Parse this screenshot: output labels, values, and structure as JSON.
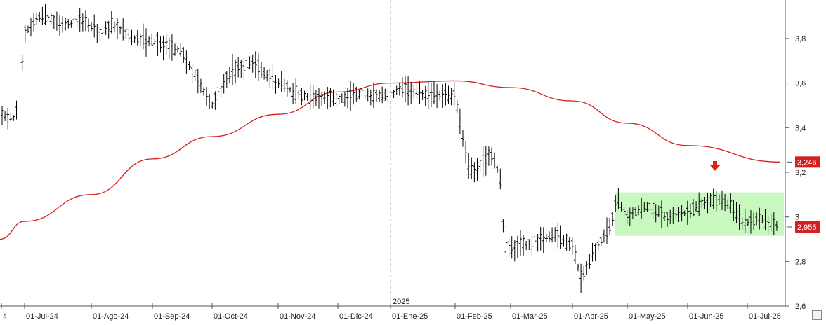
{
  "chart_data": {
    "type": "ohlc",
    "title": "",
    "xlabel": "",
    "ylabel": "",
    "ylim": [
      2.6,
      3.96
    ],
    "y_ticks": [
      "2,6",
      "2,8",
      "3",
      "3,2",
      "3,4",
      "3,6",
      "3,8"
    ],
    "y_tick_values": [
      2.6,
      2.8,
      3.0,
      3.2,
      3.4,
      3.6,
      3.8
    ],
    "x_tick_labels": [
      "4",
      "01-Jul-24",
      "01-Ago-24",
      "01-Sep-24",
      "01-Oct-24",
      "01-Nov-24",
      "01-Dic-24",
      "01-Ene-25",
      "01-Feb-25",
      "01-Mar-25",
      "01-Abr-25",
      "01-May-25",
      "01-Jun-25",
      "01-Jul-25"
    ],
    "year_marker": "2025",
    "grid": false,
    "price_label": "2,955",
    "price_value": 2.955,
    "ma_label": "3,246",
    "ma_value": 3.246,
    "colors": {
      "bars": "#000000",
      "moving_average": "#d42020",
      "price_label_bg": "#d42020",
      "range_box": "#c9f7c0",
      "arrow": "#e02010"
    },
    "series": [
      {
        "name": "",
        "kind": "price_bars",
        "points": [
          [
            "Jun-24",
            3.44
          ],
          [
            "Jul-24",
            3.88
          ],
          [
            "Ago-24",
            3.83
          ],
          [
            "Sep-24",
            3.72
          ],
          [
            "Oct-24",
            3.66
          ],
          [
            "Nov-24",
            3.53
          ],
          [
            "Dic-24",
            3.54
          ],
          [
            "Ene-25",
            3.56
          ],
          [
            "Feb-25",
            3.3
          ],
          [
            "Mar-25",
            2.87
          ],
          [
            "Abr-25",
            2.78
          ],
          [
            "May-25",
            2.99
          ],
          [
            "Jun-25",
            3.08
          ],
          [
            "Jul-25",
            2.955
          ]
        ]
      },
      {
        "name": "",
        "kind": "moving_average",
        "points": [
          [
            "Jun-24",
            2.9
          ],
          [
            "Jul-24",
            2.98
          ],
          [
            "Ago-24",
            3.1
          ],
          [
            "Sep-24",
            3.26
          ],
          [
            "Oct-24",
            3.36
          ],
          [
            "Nov-24",
            3.46
          ],
          [
            "Dic-24",
            3.56
          ],
          [
            "Ene-25",
            3.6
          ],
          [
            "Feb-25",
            3.61
          ],
          [
            "Mar-25",
            3.58
          ],
          [
            "Abr-25",
            3.52
          ],
          [
            "May-25",
            3.42
          ],
          [
            "Jun-25",
            3.32
          ],
          [
            "Jul-25",
            3.246
          ]
        ]
      }
    ],
    "annotations": [
      {
        "type": "range_box",
        "y_from": 2.915,
        "y_to": 3.11,
        "from": "Abr-25 end",
        "to": "Jul-25"
      },
      {
        "type": "down_arrow",
        "at": "Jun-25"
      }
    ]
  }
}
